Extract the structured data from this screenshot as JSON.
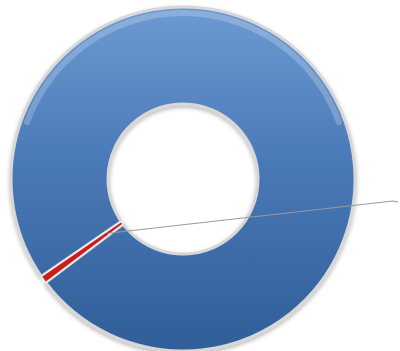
{
  "chart_data": {
    "type": "pie",
    "variant": "donut",
    "title": "",
    "legend": "none",
    "slices": [
      {
        "value": 99.3,
        "color": "#4a79b7"
      },
      {
        "value": 0.7,
        "color": "#c81e1e"
      }
    ]
  }
}
